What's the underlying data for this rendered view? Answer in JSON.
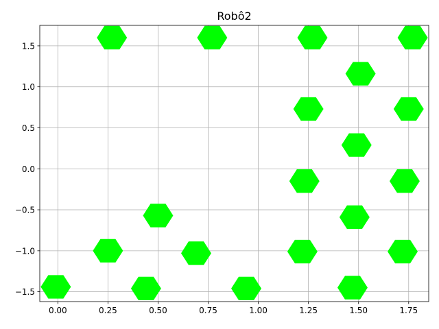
{
  "chart_data": {
    "type": "scatter",
    "title": "Robô2",
    "xlabel": "",
    "ylabel": "",
    "xlim": [
      -0.09,
      1.85
    ],
    "ylim": [
      -1.62,
      1.75
    ],
    "grid": true,
    "marker": "hexagon",
    "x_ticks": [
      {
        "value": 0.0,
        "label": "0.00"
      },
      {
        "value": 0.25,
        "label": "0.25"
      },
      {
        "value": 0.5,
        "label": "0.50"
      },
      {
        "value": 0.75,
        "label": "0.75"
      },
      {
        "value": 1.0,
        "label": "1.00"
      },
      {
        "value": 1.25,
        "label": "1.25"
      },
      {
        "value": 1.5,
        "label": "1.50"
      },
      {
        "value": 1.75,
        "label": "1.75"
      }
    ],
    "y_ticks": [
      {
        "value": -1.5,
        "label": "−1.5"
      },
      {
        "value": -1.0,
        "label": "−1.0"
      },
      {
        "value": -0.5,
        "label": "−0.5"
      },
      {
        "value": 0.0,
        "label": "0.0"
      },
      {
        "value": 0.5,
        "label": "0.5"
      },
      {
        "value": 1.0,
        "label": "1.0"
      },
      {
        "value": 1.5,
        "label": "1.5"
      }
    ],
    "series": [
      {
        "color": "#00ff00",
        "points": [
          {
            "x": 0.27,
            "y": 1.6
          },
          {
            "x": 0.77,
            "y": 1.6
          },
          {
            "x": 1.27,
            "y": 1.6
          },
          {
            "x": 1.77,
            "y": 1.6
          },
          {
            "x": 1.51,
            "y": 1.16
          },
          {
            "x": 1.25,
            "y": 0.73
          },
          {
            "x": 1.75,
            "y": 0.73
          },
          {
            "x": 1.49,
            "y": 0.29
          },
          {
            "x": 1.23,
            "y": -0.15
          },
          {
            "x": 1.73,
            "y": -0.15
          },
          {
            "x": 0.5,
            "y": -0.57
          },
          {
            "x": 1.48,
            "y": -0.59
          },
          {
            "x": 0.25,
            "y": -1.0
          },
          {
            "x": 0.69,
            "y": -1.03
          },
          {
            "x": 1.22,
            "y": -1.01
          },
          {
            "x": 1.72,
            "y": -1.01
          },
          {
            "x": -0.01,
            "y": -1.44
          },
          {
            "x": 0.44,
            "y": -1.46
          },
          {
            "x": 0.94,
            "y": -1.46
          },
          {
            "x": 1.47,
            "y": -1.45
          }
        ]
      }
    ]
  }
}
